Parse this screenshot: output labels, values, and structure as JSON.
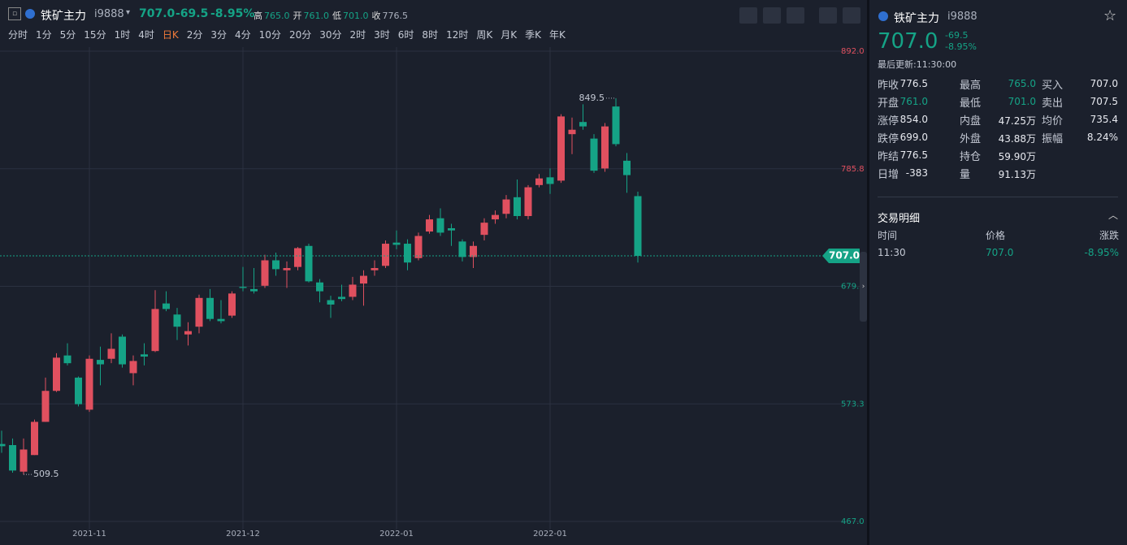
{
  "header": {
    "name": "铁矿主力",
    "code": "i9888",
    "price": "707.0",
    "change": "-69.5",
    "change_pct": "-8.95%",
    "stats": [
      [
        "高",
        "765.0"
      ],
      [
        "开",
        "761.0"
      ],
      [
        "低",
        "701.0"
      ],
      [
        "收",
        "776.5"
      ]
    ]
  },
  "periods": [
    "分时",
    "1分",
    "5分",
    "15分",
    "1时",
    "4时",
    "日K",
    "2分",
    "3分",
    "4分",
    "10分",
    "20分",
    "30分",
    "2时",
    "3时",
    "6时",
    "8时",
    "12时",
    "周K",
    "月K",
    "季K",
    "年K"
  ],
  "chart_data": {
    "type": "candlestick",
    "up_color": "#e0505f",
    "down_color": "#15a386",
    "grid": true,
    "categories": [
      null,
      null,
      null,
      null,
      null,
      null,
      null,
      null,
      "2021-11",
      null,
      null,
      null,
      null,
      null,
      null,
      null,
      null,
      null,
      null,
      null,
      null,
      null,
      "2021-12",
      null,
      null,
      null,
      null,
      null,
      null,
      null,
      null,
      null,
      null,
      null,
      null,
      null,
      "2022-01",
      null,
      null,
      null,
      null,
      null,
      null,
      null,
      null,
      null,
      null,
      null,
      null,
      null,
      "2022-01",
      null,
      null,
      null,
      null,
      null,
      null,
      null,
      null
    ],
    "open": [
      537,
      536,
      512,
      527,
      557,
      585,
      617,
      597,
      568,
      613,
      614,
      634,
      601,
      618,
      621,
      664,
      654,
      636,
      643,
      669,
      650,
      653,
      679,
      677,
      680,
      703,
      694,
      697,
      716,
      683,
      667,
      670,
      670,
      682,
      694,
      698,
      719,
      718,
      705,
      729,
      741,
      732,
      720,
      706,
      726,
      740,
      745,
      760,
      743,
      771,
      778,
      775,
      817,
      828,
      813,
      786,
      842,
      793,
      761
    ],
    "high": [
      549,
      542,
      542,
      559,
      597,
      619,
      628,
      598,
      617,
      625,
      637,
      636,
      617,
      628,
      676,
      675,
      660,
      647,
      672,
      677,
      667,
      675,
      697,
      696,
      708,
      710,
      702,
      715,
      718,
      686,
      671,
      681,
      688,
      694,
      703,
      721,
      730,
      722,
      728,
      744,
      750,
      736,
      722,
      720,
      741,
      748,
      762,
      776,
      771,
      781,
      786,
      835,
      832,
      844,
      817,
      827,
      849.5,
      800,
      765
    ],
    "low": [
      529,
      511,
      509.5,
      527,
      557,
      584,
      608,
      571,
      566,
      590,
      610,
      606,
      590,
      608,
      620,
      657,
      631,
      626,
      637,
      648,
      646,
      651,
      675,
      673,
      678,
      689,
      678,
      694,
      683,
      665,
      651,
      666,
      667,
      662,
      689,
      696,
      713,
      694,
      703,
      727,
      725,
      716,
      702,
      696,
      721,
      736,
      741,
      740,
      740,
      769,
      763,
      773,
      799,
      821,
      782,
      783,
      806,
      764,
      701
    ],
    "close": [
      535,
      513,
      532,
      557,
      585,
      615,
      610,
      573,
      614,
      609,
      623,
      609,
      612,
      616,
      659,
      659,
      643,
      639,
      669,
      650,
      648,
      673,
      678,
      675,
      703,
      695,
      696,
      714,
      684,
      675,
      663,
      668,
      681,
      689,
      696,
      718,
      717,
      701,
      725,
      740,
      728,
      730,
      706,
      716,
      737,
      744,
      758,
      743,
      769,
      777,
      772,
      833,
      821,
      824,
      784,
      824,
      808,
      780,
      707
    ],
    "ylim": [
      467,
      892
    ],
    "yticks": [
      {
        "value": 467,
        "label": "467.0"
      },
      {
        "value": 573.25,
        "label": "573.3"
      },
      {
        "value": 679.5,
        "label": "679.5"
      },
      {
        "value": 785.75,
        "label": "785.8"
      },
      {
        "value": 892,
        "label": "892.0"
      }
    ],
    "price_line": {
      "value": 707,
      "label": "707.0"
    }
  },
  "quote_panel": {
    "name": "铁矿主力",
    "code": "i9888",
    "price": "707.0",
    "change": "-69.5",
    "change_pct": "-8.95%",
    "updated": "最后更新:11:30:00",
    "rows": [
      [
        [
          "昨收",
          "776.5"
        ],
        [
          "最高",
          "765.0"
        ],
        [
          "买入",
          "707.0"
        ]
      ],
      [
        [
          "开盘",
          "761.0"
        ],
        [
          "最低",
          "701.0"
        ],
        [
          "卖出",
          "707.5"
        ]
      ],
      [
        [
          "涨停",
          "854.0"
        ],
        [
          "内盘",
          "47.25万"
        ],
        [
          "均价",
          "735.4"
        ]
      ],
      [
        [
          "跌停",
          "699.0"
        ],
        [
          "外盘",
          "43.88万"
        ],
        [
          "振幅",
          "8.24%"
        ]
      ],
      [
        [
          "昨结",
          "776.5"
        ],
        [
          "持仓",
          "59.90万"
        ]
      ],
      [
        [
          "日增",
          "-383"
        ],
        [
          "量",
          "91.13万"
        ]
      ]
    ]
  },
  "trade_detail": {
    "title": "交易明细",
    "columns": [
      "时间",
      "价格",
      "涨跌"
    ],
    "rows": [
      [
        "11:30",
        "707.0",
        "-8.95%"
      ]
    ]
  }
}
